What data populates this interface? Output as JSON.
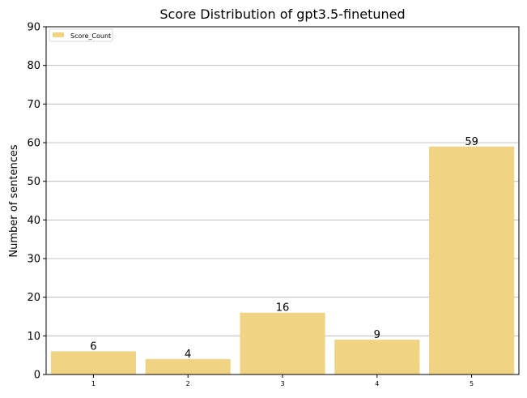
{
  "chart_data": {
    "type": "bar",
    "title": "Score Distribution of gpt3.5-finetuned",
    "xlabel": "",
    "ylabel": "Number of sentences",
    "categories": [
      "1",
      "2",
      "3",
      "4",
      "5"
    ],
    "series": [
      {
        "name": "Score_Count",
        "values": [
          6,
          4,
          16,
          9,
          59
        ],
        "color": "#f0d383"
      }
    ],
    "ylim": [
      0,
      90
    ],
    "yticks": [
      0,
      10,
      20,
      30,
      40,
      50,
      60,
      70,
      80,
      90
    ],
    "grid": "y",
    "legend": "top-left",
    "data_labels": true
  }
}
